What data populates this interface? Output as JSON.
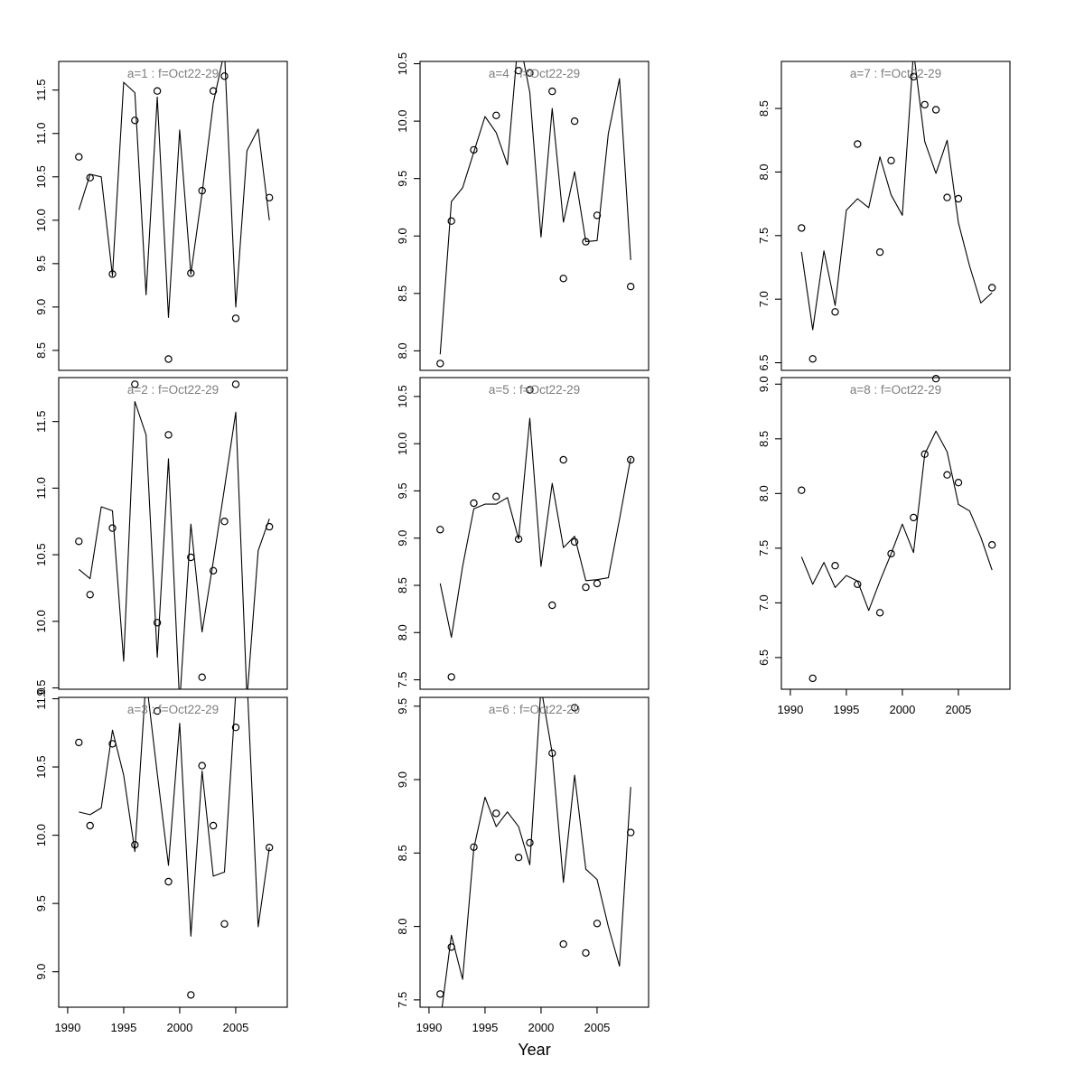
{
  "chart_data": {
    "type": "line",
    "xlabel": "Year",
    "xlim": [
      1989.2,
      2009.6
    ],
    "xticks": [
      1990,
      1995,
      2000,
      2005
    ],
    "line_start_year": 1991,
    "point_years": [
      1991,
      1992,
      1994,
      1996,
      1998,
      1999,
      2001,
      2002,
      2003,
      2004,
      2005,
      2008
    ],
    "title_color": "#7d7d7d",
    "series_color": "#000000",
    "legend": "open circles = observed values, solid line = model fit",
    "panels": [
      {
        "name": "a1",
        "title": "a=1  :  f=Oct22-29",
        "col": 0,
        "row": 0,
        "ylim": [
          8.27,
          11.83
        ],
        "yticks": [
          8.5,
          9.0,
          9.5,
          10.0,
          10.5,
          11.0,
          11.5
        ],
        "show_xaxis": false,
        "line_values": [
          10.12,
          10.53,
          10.5,
          9.36,
          11.59,
          11.47,
          9.14,
          11.42,
          8.88,
          11.04,
          9.38,
          10.31,
          11.35,
          11.95,
          9.0,
          10.8,
          11.05,
          10.0
        ],
        "point_values": [
          10.73,
          10.49,
          9.38,
          11.15,
          11.49,
          8.4,
          9.39,
          10.34,
          11.49,
          11.66,
          8.87,
          10.26
        ]
      },
      {
        "name": "a4",
        "title": "a=4  :  f=Oct22-29",
        "col": 1,
        "row": 0,
        "ylim": [
          7.83,
          10.52
        ],
        "yticks": [
          8.0,
          8.5,
          9.0,
          9.5,
          10.0,
          10.5
        ],
        "show_xaxis": false,
        "line_values": [
          7.97,
          9.3,
          9.42,
          9.73,
          10.04,
          9.9,
          9.62,
          10.75,
          10.25,
          8.99,
          10.11,
          9.12,
          9.56,
          8.95,
          8.96,
          9.89,
          10.37,
          8.79
        ],
        "point_values": [
          7.89,
          9.13,
          9.75,
          10.05,
          10.44,
          10.42,
          10.26,
          8.63,
          10.0,
          8.95,
          9.18,
          8.56
        ]
      },
      {
        "name": "a7",
        "title": "a=7  :  f=Oct22-29",
        "col": 2,
        "row": 0,
        "ylim": [
          6.44,
          8.87
        ],
        "yticks": [
          6.5,
          7.0,
          7.5,
          8.0,
          8.5
        ],
        "show_xaxis": false,
        "line_values": [
          7.37,
          6.76,
          7.38,
          6.95,
          7.7,
          7.79,
          7.72,
          8.12,
          7.82,
          7.66,
          8.95,
          8.24,
          7.99,
          8.25,
          7.6,
          7.26,
          6.97,
          7.05
        ],
        "point_values": [
          7.56,
          6.53,
          6.9,
          8.22,
          7.37,
          8.09,
          8.75,
          8.53,
          8.49,
          7.8,
          7.79,
          7.09
        ]
      },
      {
        "name": "a2",
        "title": "a=2  :  f=Oct22-29",
        "col": 0,
        "row": 1,
        "ylim": [
          9.49,
          11.83
        ],
        "yticks": [
          9.5,
          10.0,
          10.5,
          11.0,
          11.5
        ],
        "show_xaxis": false,
        "line_values": [
          10.39,
          10.32,
          10.86,
          10.83,
          9.7,
          11.65,
          11.4,
          9.73,
          11.22,
          9.38,
          10.73,
          9.92,
          10.45,
          11.0,
          11.57,
          9.42,
          10.53,
          10.77
        ],
        "point_values": [
          10.6,
          10.2,
          10.7,
          11.78,
          9.99,
          11.4,
          10.48,
          9.58,
          10.38,
          10.75,
          11.78,
          10.71
        ]
      },
      {
        "name": "a5",
        "title": "a=5  :  f=Oct22-29",
        "col": 1,
        "row": 1,
        "ylim": [
          7.4,
          10.7
        ],
        "yticks": [
          7.5,
          8.0,
          8.5,
          9.0,
          9.5,
          10.0,
          10.5
        ],
        "show_xaxis": false,
        "line_values": [
          8.52,
          7.95,
          8.7,
          9.31,
          9.36,
          9.36,
          9.43,
          8.99,
          10.27,
          8.7,
          9.58,
          8.9,
          9.02,
          8.55,
          8.56,
          8.58,
          9.2,
          9.85
        ],
        "point_values": [
          9.09,
          7.53,
          9.37,
          9.44,
          8.99,
          10.57,
          8.29,
          9.83,
          8.96,
          8.48,
          8.52,
          9.83
        ]
      },
      {
        "name": "a8",
        "title": "a=8  :  f=Oct22-29",
        "col": 2,
        "row": 1,
        "ylim": [
          6.21,
          9.06
        ],
        "yticks": [
          6.5,
          7.0,
          7.5,
          8.0,
          8.5,
          9.0
        ],
        "show_xaxis": true,
        "line_values": [
          7.42,
          7.17,
          7.37,
          7.14,
          7.25,
          7.2,
          6.93,
          7.2,
          7.45,
          7.72,
          7.46,
          8.36,
          8.57,
          8.38,
          7.9,
          7.84,
          7.6,
          7.3
        ],
        "point_values": [
          8.03,
          6.31,
          7.34,
          7.17,
          6.91,
          7.45,
          7.78,
          8.36,
          9.05,
          8.17,
          8.1,
          7.53
        ]
      },
      {
        "name": "a3",
        "title": "a=3  :  f=Oct22-29",
        "col": 0,
        "row": 2,
        "ylim": [
          8.74,
          11.01
        ],
        "yticks": [
          9.0,
          9.5,
          10.0,
          10.5,
          11.0
        ],
        "show_xaxis": true,
        "line_values": [
          10.17,
          10.15,
          10.2,
          10.77,
          10.44,
          9.88,
          11.15,
          10.45,
          9.78,
          10.82,
          9.26,
          10.47,
          9.7,
          9.73,
          11.05,
          11.15,
          9.33,
          9.91
        ],
        "point_values": [
          10.68,
          10.07,
          10.67,
          9.93,
          10.91,
          9.66,
          8.83,
          10.51,
          10.07,
          9.35,
          10.79,
          9.91
        ]
      },
      {
        "name": "a6",
        "title": "a=6  :  f=Oct22-29",
        "col": 1,
        "row": 2,
        "ylim": [
          7.45,
          9.56
        ],
        "yticks": [
          7.5,
          8.0,
          8.5,
          9.0,
          9.5
        ],
        "show_xaxis": true,
        "line_values": [
          7.35,
          7.94,
          7.64,
          8.53,
          8.88,
          8.68,
          8.78,
          8.68,
          8.42,
          9.63,
          9.18,
          8.3,
          9.03,
          8.39,
          8.32,
          8.0,
          7.73,
          8.95
        ],
        "point_values": [
          7.54,
          7.86,
          8.54,
          8.77,
          8.47,
          8.57,
          9.18,
          7.88,
          9.49,
          7.82,
          8.02,
          8.64
        ]
      }
    ]
  }
}
